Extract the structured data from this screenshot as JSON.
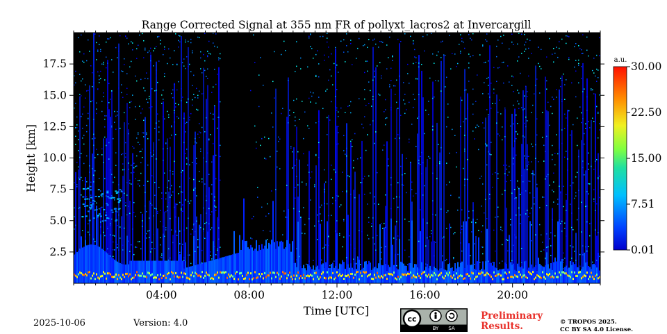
{
  "chart_data": {
    "type": "heatmap",
    "title": "Range Corrected Signal at 355 nm FR of pollyxt_lacros2 at Invercargill",
    "xlabel": "Time [UTC]",
    "ylabel": "Height [km]",
    "xlim_hours": [
      0,
      24
    ],
    "ylim_km": [
      0.0,
      20.0
    ],
    "x_ticks": [
      {
        "hour": 4,
        "label": "04:00"
      },
      {
        "hour": 8,
        "label": "08:00"
      },
      {
        "hour": 12,
        "label": "12:00"
      },
      {
        "hour": 16,
        "label": "16:00"
      },
      {
        "hour": 20,
        "label": "20:00"
      }
    ],
    "y_ticks": [
      {
        "km": 2.5,
        "label": "2.5"
      },
      {
        "km": 5.0,
        "label": "5.0"
      },
      {
        "km": 7.5,
        "label": "7.5"
      },
      {
        "km": 10.0,
        "label": "10.0"
      },
      {
        "km": 12.5,
        "label": "12.5"
      },
      {
        "km": 15.0,
        "label": "15.0"
      },
      {
        "km": 17.5,
        "label": "17.5"
      }
    ],
    "colorbar": {
      "unit": "a.u.",
      "min": 0.01,
      "max": 30.0,
      "tick_labels": [
        "30.00",
        "22.50",
        "15.00",
        "7.51",
        "0.01"
      ],
      "tick_values": [
        30.0,
        22.5,
        15.0,
        7.51,
        0.01
      ],
      "colormap": "jet"
    }
  },
  "footer": {
    "date": "2025-10-06",
    "version": "Version: 4.0",
    "preliminary_line1": "Preliminary",
    "preliminary_line2": "Results.",
    "copyright_line1": "© TROPOS 2025.",
    "copyright_line2": "CC BY SA 4.0 License.",
    "license_badge": "cc-by-sa",
    "license_by": "BY",
    "license_sa": "SA"
  },
  "colors": {
    "background_plot": "#000000",
    "signal_low": "#0a3ce0",
    "accent_red": "#e8302a"
  }
}
